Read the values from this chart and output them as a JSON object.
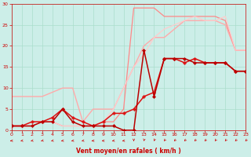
{
  "bg_color": "#cceee8",
  "grid_color": "#aaddcc",
  "tick_color": "#cc0000",
  "xlabel": "Vent moyen/en rafales ( km/h )",
  "xlabel_color": "#cc0000",
  "xlim": [
    0,
    23
  ],
  "ylim": [
    0,
    30
  ],
  "xticks": [
    0,
    1,
    2,
    3,
    4,
    5,
    6,
    7,
    8,
    9,
    10,
    11,
    12,
    13,
    14,
    15,
    16,
    17,
    18,
    19,
    20,
    21,
    22,
    23
  ],
  "yticks": [
    0,
    5,
    10,
    15,
    20,
    25,
    30
  ],
  "series": [
    {
      "x": [
        0,
        1,
        2,
        3,
        4,
        5,
        6,
        7,
        8,
        9,
        10,
        11,
        12,
        13,
        14,
        15,
        16,
        17,
        18,
        19,
        20,
        21,
        22,
        23
      ],
      "y": [
        1,
        1,
        1,
        2,
        2,
        5,
        2,
        1,
        1,
        1,
        1,
        0,
        0,
        19,
        8,
        17,
        17,
        17,
        16,
        16,
        16,
        16,
        14,
        14
      ],
      "color": "#bb0000",
      "lw": 1.1,
      "marker": "D",
      "ms": 2.0,
      "zorder": 5
    },
    {
      "x": [
        0,
        1,
        2,
        3,
        4,
        5,
        6,
        7,
        8,
        9,
        10,
        11,
        12,
        13,
        14,
        15,
        16,
        17,
        18,
        19,
        20,
        21,
        22,
        23
      ],
      "y": [
        1,
        1,
        2,
        2,
        3,
        5,
        3,
        2,
        1,
        2,
        4,
        4,
        5,
        8,
        9,
        17,
        17,
        16,
        17,
        16,
        16,
        16,
        14,
        14
      ],
      "color": "#dd1111",
      "lw": 1.1,
      "marker": "P",
      "ms": 2.5,
      "zorder": 4
    },
    {
      "x": [
        0,
        1,
        2,
        3,
        4,
        5,
        6,
        7,
        8,
        9,
        10,
        11,
        12,
        13,
        14,
        15,
        16,
        17,
        18,
        19,
        20,
        21,
        22,
        23
      ],
      "y": [
        8,
        8,
        8,
        8,
        9,
        10,
        10,
        2,
        5,
        5,
        5,
        10,
        15,
        20,
        22,
        22,
        24,
        26,
        26,
        26,
        26,
        25,
        19,
        19
      ],
      "color": "#ffaaaa",
      "lw": 1.0,
      "marker": null,
      "ms": 0,
      "zorder": 2
    },
    {
      "x": [
        0,
        1,
        2,
        3,
        4,
        5,
        6,
        7,
        8,
        9,
        10,
        11,
        12,
        13,
        14,
        15,
        16,
        17,
        18,
        19,
        20,
        21,
        22,
        23
      ],
      "y": [
        1,
        1,
        1,
        2,
        2,
        1,
        1,
        1,
        1,
        2,
        2,
        5,
        29,
        29,
        29,
        27,
        27,
        27,
        27,
        27,
        27,
        26,
        19,
        19
      ],
      "color": "#ff8888",
      "lw": 0.9,
      "marker": null,
      "ms": 0,
      "zorder": 2
    },
    {
      "x": [
        0,
        1,
        2,
        3,
        4,
        5,
        6,
        7,
        8,
        9,
        10,
        11,
        12,
        13,
        14,
        15,
        16,
        17,
        18,
        19,
        20,
        21,
        22,
        23
      ],
      "y": [
        1,
        1,
        2,
        2,
        2,
        1,
        1,
        1,
        1,
        2,
        5,
        10,
        15,
        18,
        22,
        24,
        25,
        26,
        27,
        26,
        26,
        27,
        19,
        19
      ],
      "color": "#ffcccc",
      "lw": 0.9,
      "marker": null,
      "ms": 0,
      "zorder": 2
    }
  ],
  "arrow_color": "#cc0000",
  "arrow_angles": [
    180,
    195,
    200,
    210,
    195,
    185,
    190,
    195,
    180,
    175,
    190,
    185,
    270,
    265,
    260,
    250,
    245,
    245,
    245,
    245,
    250,
    248,
    245,
    245
  ]
}
